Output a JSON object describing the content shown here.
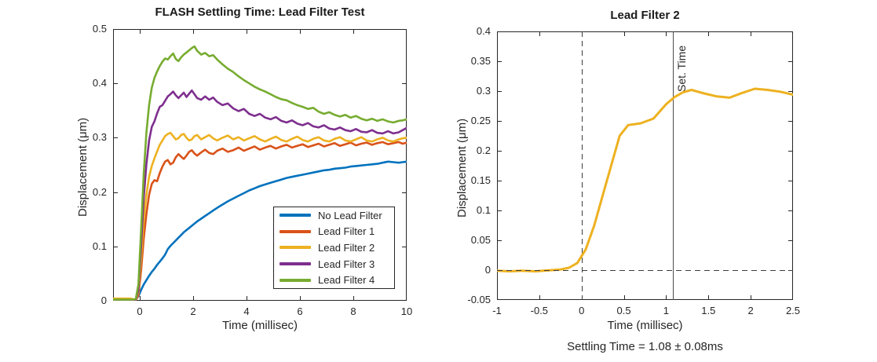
{
  "figure": {
    "background": "#ffffff",
    "axis_color": "#262626",
    "dashed_line_color": "#3d3d3d",
    "solid_marker_line_color": "#4d4d4d"
  },
  "chart_data": [
    {
      "type": "line",
      "title": "FLASH Settling Time: Lead Filter Test",
      "xlabel": "Time (millisec)",
      "ylabel": "Displacement (μm)",
      "xlim": [
        -1,
        10
      ],
      "ylim": [
        0,
        0.5
      ],
      "grid": false,
      "legend_position": "southeast",
      "xticks": [
        0,
        2,
        4,
        6,
        8,
        10
      ],
      "xtick_labels": [
        "0",
        "2",
        "4",
        "6",
        "8",
        "10"
      ],
      "yticks": [
        0,
        0.1,
        0.2,
        0.3,
        0.4,
        0.5
      ],
      "ytick_labels": [
        "0",
        "0.1",
        "0.2",
        "0.3",
        "0.4",
        "0.5"
      ],
      "x": [
        -1,
        -0.75,
        -0.5,
        -0.35,
        -0.25,
        -0.15,
        -0.05,
        0.05,
        0.15,
        0.25,
        0.35,
        0.45,
        0.55,
        0.65,
        0.75,
        0.85,
        0.95,
        1.05,
        1.15,
        1.25,
        1.35,
        1.45,
        1.55,
        1.65,
        1.75,
        1.85,
        1.95,
        2.05,
        2.15,
        2.3,
        2.45,
        2.6,
        2.75,
        2.9,
        3.1,
        3.3,
        3.5,
        3.7,
        3.9,
        4.1,
        4.3,
        4.5,
        4.7,
        4.9,
        5.1,
        5.3,
        5.5,
        5.7,
        5.9,
        6.1,
        6.3,
        6.5,
        6.7,
        6.9,
        7.1,
        7.3,
        7.5,
        7.7,
        7.9,
        8.1,
        8.3,
        8.5,
        8.7,
        8.9,
        9.1,
        9.3,
        9.5,
        9.7,
        9.85,
        10
      ],
      "series": [
        {
          "name": "No Lead Filter",
          "color": "#0072BD",
          "values": [
            0.003,
            0.003,
            0.003,
            0.003,
            0.002,
            0.003,
            0.008,
            0.02,
            0.03,
            0.038,
            0.046,
            0.053,
            0.059,
            0.066,
            0.072,
            0.078,
            0.085,
            0.095,
            0.101,
            0.106,
            0.111,
            0.116,
            0.121,
            0.126,
            0.13,
            0.134,
            0.138,
            0.142,
            0.146,
            0.151,
            0.156,
            0.161,
            0.166,
            0.171,
            0.177,
            0.183,
            0.188,
            0.193,
            0.198,
            0.203,
            0.207,
            0.211,
            0.214,
            0.217,
            0.22,
            0.223,
            0.226,
            0.228,
            0.23,
            0.232,
            0.234,
            0.236,
            0.238,
            0.24,
            0.241,
            0.243,
            0.244,
            0.245,
            0.247,
            0.248,
            0.249,
            0.25,
            0.251,
            0.252,
            0.254,
            0.256,
            0.255,
            0.254,
            0.255,
            0.256
          ]
        },
        {
          "name": "Lead Filter 1",
          "color": "#D95319",
          "values": [
            0.003,
            0.003,
            0.003,
            0.003,
            0.002,
            0.001,
            0.01,
            0.055,
            0.115,
            0.16,
            0.195,
            0.215,
            0.222,
            0.22,
            0.235,
            0.247,
            0.256,
            0.259,
            0.251,
            0.254,
            0.264,
            0.27,
            0.265,
            0.261,
            0.267,
            0.274,
            0.277,
            0.271,
            0.267,
            0.273,
            0.278,
            0.272,
            0.27,
            0.276,
            0.28,
            0.274,
            0.277,
            0.282,
            0.276,
            0.28,
            0.284,
            0.278,
            0.282,
            0.285,
            0.28,
            0.284,
            0.287,
            0.282,
            0.285,
            0.288,
            0.283,
            0.286,
            0.289,
            0.284,
            0.287,
            0.29,
            0.285,
            0.288,
            0.291,
            0.286,
            0.289,
            0.291,
            0.287,
            0.29,
            0.292,
            0.288,
            0.29,
            0.292,
            0.289,
            0.291
          ]
        },
        {
          "name": "Lead Filter 2",
          "color": "#EDB120",
          "values": [
            0.004,
            0.004,
            0.004,
            0.004,
            0.003,
            0.002,
            0.015,
            0.075,
            0.15,
            0.195,
            0.228,
            0.248,
            0.262,
            0.275,
            0.287,
            0.295,
            0.303,
            0.307,
            0.309,
            0.303,
            0.297,
            0.299,
            0.305,
            0.307,
            0.3,
            0.295,
            0.297,
            0.303,
            0.305,
            0.297,
            0.301,
            0.305,
            0.299,
            0.295,
            0.3,
            0.304,
            0.297,
            0.301,
            0.295,
            0.299,
            0.303,
            0.297,
            0.293,
            0.298,
            0.302,
            0.296,
            0.293,
            0.298,
            0.302,
            0.296,
            0.293,
            0.298,
            0.301,
            0.295,
            0.293,
            0.298,
            0.301,
            0.295,
            0.293,
            0.297,
            0.301,
            0.295,
            0.293,
            0.297,
            0.3,
            0.295,
            0.293,
            0.297,
            0.299,
            0.3
          ]
        },
        {
          "name": "Lead Filter 3",
          "color": "#7E2F8E",
          "values": [
            0.001,
            0.001,
            0.001,
            0.001,
            0.001,
            0.002,
            0.02,
            0.1,
            0.19,
            0.252,
            0.295,
            0.32,
            0.33,
            0.345,
            0.357,
            0.36,
            0.368,
            0.376,
            0.38,
            0.385,
            0.378,
            0.373,
            0.378,
            0.383,
            0.375,
            0.381,
            0.387,
            0.38,
            0.373,
            0.37,
            0.376,
            0.37,
            0.374,
            0.366,
            0.36,
            0.363,
            0.354,
            0.349,
            0.353,
            0.344,
            0.34,
            0.344,
            0.337,
            0.334,
            0.338,
            0.331,
            0.328,
            0.332,
            0.326,
            0.323,
            0.327,
            0.321,
            0.319,
            0.323,
            0.317,
            0.315,
            0.319,
            0.314,
            0.312,
            0.316,
            0.311,
            0.31,
            0.314,
            0.309,
            0.308,
            0.312,
            0.308,
            0.31,
            0.314,
            0.318
          ]
        },
        {
          "name": "Lead Filter 4",
          "color": "#77AC30",
          "values": [
            0.002,
            0.002,
            0.002,
            0.002,
            0.002,
            0.003,
            0.03,
            0.13,
            0.235,
            0.31,
            0.36,
            0.392,
            0.41,
            0.422,
            0.432,
            0.44,
            0.446,
            0.444,
            0.45,
            0.455,
            0.445,
            0.441,
            0.448,
            0.453,
            0.457,
            0.461,
            0.465,
            0.468,
            0.46,
            0.453,
            0.456,
            0.45,
            0.452,
            0.444,
            0.435,
            0.427,
            0.421,
            0.413,
            0.406,
            0.4,
            0.394,
            0.389,
            0.385,
            0.38,
            0.375,
            0.371,
            0.369,
            0.364,
            0.36,
            0.357,
            0.353,
            0.355,
            0.348,
            0.344,
            0.347,
            0.342,
            0.339,
            0.342,
            0.337,
            0.34,
            0.335,
            0.332,
            0.335,
            0.331,
            0.334,
            0.33,
            0.328,
            0.331,
            0.332,
            0.334
          ]
        }
      ]
    },
    {
      "type": "line",
      "title": "Lead Filter 2",
      "xlabel": "Time (millisec)",
      "ylabel": "Displacement (μm)",
      "caption": "Settling Time = 1.08 ± 0.08ms",
      "xlim": [
        -1,
        2.5
      ],
      "ylim": [
        -0.05,
        0.4
      ],
      "grid": false,
      "xticks": [
        -1,
        -0.5,
        0,
        0.5,
        1,
        1.5,
        2,
        2.5
      ],
      "xtick_labels": [
        "-1",
        "-0.5",
        "0",
        "0.5",
        "1",
        "1.5",
        "2",
        "2.5"
      ],
      "yticks": [
        -0.05,
        0,
        0.05,
        0.1,
        0.15,
        0.2,
        0.25,
        0.3,
        0.35,
        0.4
      ],
      "ytick_labels": [
        "-0.05",
        "0",
        "0.05",
        "0.1",
        "0.15",
        "0.2",
        "0.25",
        "0.3",
        "0.35",
        "0.4"
      ],
      "annotations": {
        "vline_dashed_x": 0,
        "hline_dashed_y": 0,
        "vline_solid_x": 1.08,
        "vline_solid_label": "Set. Time"
      },
      "series": [
        {
          "name": "Lead Filter 2",
          "color": "#EDB120",
          "x": [
            -1,
            -0.85,
            -0.7,
            -0.55,
            -0.45,
            -0.35,
            -0.25,
            -0.15,
            -0.05,
            0.05,
            0.15,
            0.25,
            0.35,
            0.45,
            0.55,
            0.7,
            0.85,
            1.0,
            1.1,
            1.2,
            1.3,
            1.45,
            1.6,
            1.75,
            1.9,
            2.05,
            2.2,
            2.35,
            2.5
          ],
          "values": [
            -0.001,
            -0.002,
            -0.001,
            -0.002,
            -0.001,
            0.0,
            0.001,
            0.004,
            0.012,
            0.035,
            0.075,
            0.125,
            0.175,
            0.225,
            0.243,
            0.246,
            0.254,
            0.278,
            0.29,
            0.298,
            0.302,
            0.296,
            0.291,
            0.289,
            0.297,
            0.304,
            0.302,
            0.299,
            0.294
          ]
        }
      ]
    }
  ]
}
